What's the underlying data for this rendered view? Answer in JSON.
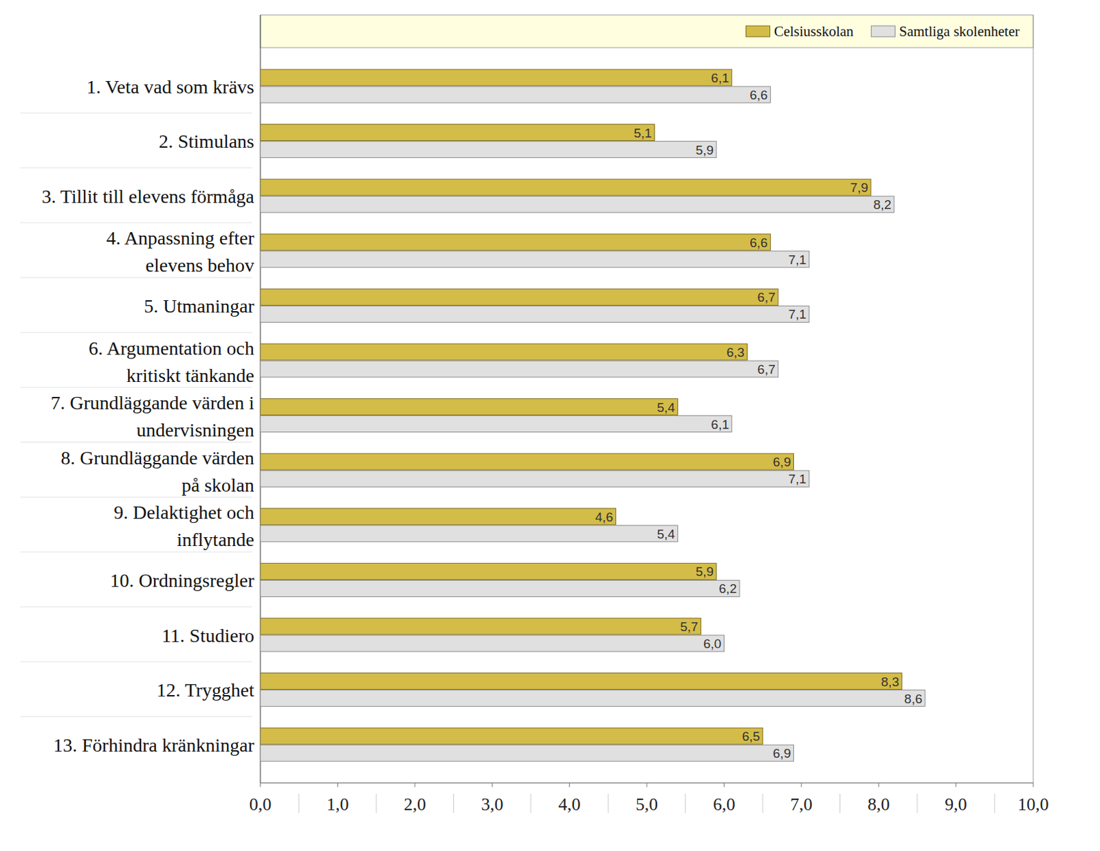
{
  "chart_data": {
    "type": "bar",
    "orientation": "horizontal",
    "data_labels": true,
    "legend": "top-right",
    "grid": false,
    "categories": [
      "1. Veta vad som krävs",
      "2. Stimulans",
      "3. Tillit till elevens förmåga",
      "4. Anpassning efter\nelevens behov",
      "5. Utmaningar",
      "6. Argumentation och\nkritiskt tänkande",
      "7. Grundläggande värden i\nundervisningen",
      "8. Grundläggande värden\npå skolan",
      "9. Delaktighet och\ninflytande",
      "10. Ordningsregler",
      "11. Studiero",
      "12. Trygghet",
      "13. Förhindra kränkningar"
    ],
    "series": [
      {
        "name": "Celsiusskolan",
        "color": "#d4bc48",
        "values": [
          6.1,
          5.1,
          7.9,
          6.6,
          6.7,
          6.3,
          5.4,
          6.9,
          4.6,
          5.9,
          5.7,
          8.3,
          6.5
        ],
        "value_labels": [
          "6,1",
          "5,1",
          "7,9",
          "6,6",
          "6,7",
          "6,3",
          "5,4",
          "6,9",
          "4,6",
          "5,9",
          "5,7",
          "8,3",
          "6,5"
        ]
      },
      {
        "name": "Samtliga skolenheter",
        "color": "#e0e0e0",
        "values": [
          6.6,
          5.9,
          8.2,
          7.1,
          7.1,
          6.7,
          6.1,
          7.1,
          5.4,
          6.2,
          6.0,
          8.6,
          6.9
        ],
        "value_labels": [
          "6,6",
          "5,9",
          "8,2",
          "7,1",
          "7,1",
          "6,7",
          "6,1",
          "7,1",
          "5,4",
          "6,2",
          "6,0",
          "8,6",
          "6,9"
        ]
      }
    ],
    "xlim": [
      0,
      10
    ],
    "xticks": [
      {
        "value": 0,
        "label": "0,0"
      },
      {
        "value": 1,
        "label": "1,0"
      },
      {
        "value": 2,
        "label": "2,0"
      },
      {
        "value": 3,
        "label": "3,0"
      },
      {
        "value": 4,
        "label": "4,0"
      },
      {
        "value": 5,
        "label": "5,0"
      },
      {
        "value": 6,
        "label": "6,0"
      },
      {
        "value": 7,
        "label": "7,0"
      },
      {
        "value": 8,
        "label": "8,0"
      },
      {
        "value": 9,
        "label": "9,0"
      },
      {
        "value": 10,
        "label": "10,0"
      }
    ]
  }
}
